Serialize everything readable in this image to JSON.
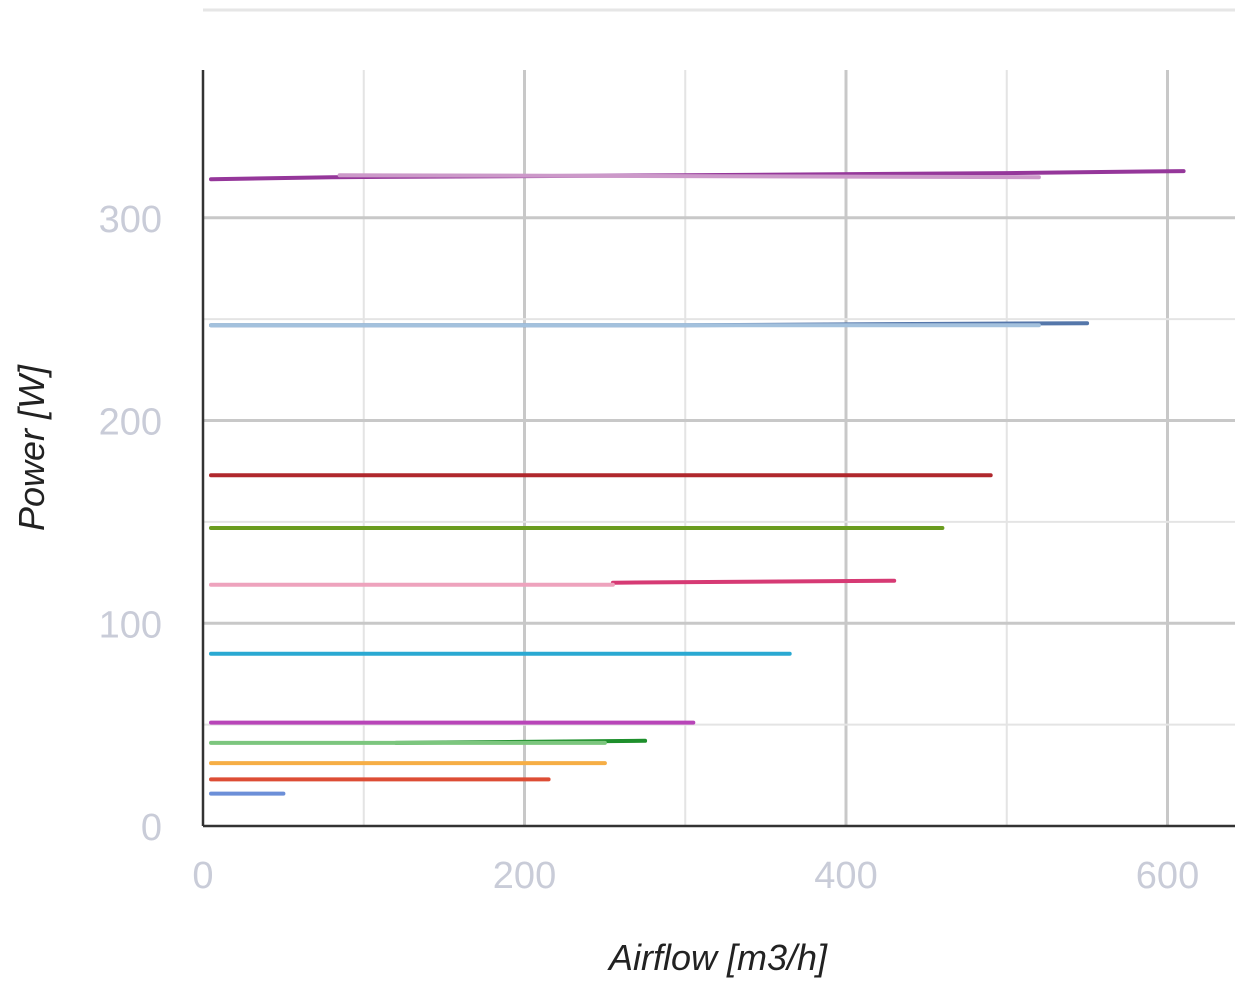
{
  "chart_data": {
    "type": "line",
    "xlabel": "Airflow [m3/h]",
    "ylabel": "Power [W]",
    "xlim": [
      0,
      640
    ],
    "ylim": [
      0,
      350
    ],
    "x_ticks": [
      0,
      200,
      400,
      600
    ],
    "y_ticks": [
      0,
      100,
      200,
      300
    ],
    "x_gridlines": [
      0,
      100,
      200,
      300,
      400,
      500,
      600
    ],
    "y_gridlines": [
      50,
      100,
      150,
      200,
      250,
      300
    ],
    "grid": true,
    "legend": "none",
    "series": [
      {
        "color": "#95379a",
        "x": [
          5,
          80,
          300,
          500,
          610
        ],
        "y": [
          319,
          320,
          321,
          322,
          323
        ]
      },
      {
        "color": "#cc99c9",
        "x": [
          85,
          520
        ],
        "y": [
          321,
          320
        ]
      },
      {
        "color": "#5577aa",
        "x": [
          5,
          300,
          550
        ],
        "y": [
          247,
          247,
          248
        ]
      },
      {
        "color": "#a3c1dd",
        "x": [
          5,
          520
        ],
        "y": [
          247,
          247
        ]
      },
      {
        "color": "#b0282d",
        "x": [
          5,
          490
        ],
        "y": [
          173,
          173
        ]
      },
      {
        "color": "#6a9c1f",
        "x": [
          5,
          460
        ],
        "y": [
          147,
          147
        ]
      },
      {
        "color": "#d63a74",
        "x": [
          255,
          430
        ],
        "y": [
          120,
          121
        ]
      },
      {
        "color": "#eea3bd",
        "x": [
          5,
          255
        ],
        "y": [
          119,
          119
        ]
      },
      {
        "color": "#2aa9d2",
        "x": [
          5,
          365
        ],
        "y": [
          85,
          85
        ]
      },
      {
        "color": "#b845b8",
        "x": [
          5,
          305
        ],
        "y": [
          51,
          51
        ]
      },
      {
        "color": "#1e8f2c",
        "x": [
          120,
          275
        ],
        "y": [
          41,
          42
        ]
      },
      {
        "color": "#7cc67e",
        "x": [
          5,
          250
        ],
        "y": [
          41,
          41
        ]
      },
      {
        "color": "#f6ae45",
        "x": [
          5,
          250
        ],
        "y": [
          31,
          31
        ]
      },
      {
        "color": "#dd4d35",
        "x": [
          5,
          215
        ],
        "y": [
          23,
          23
        ]
      },
      {
        "color": "#6c8fd8",
        "x": [
          5,
          50
        ],
        "y": [
          16,
          16
        ]
      }
    ]
  }
}
